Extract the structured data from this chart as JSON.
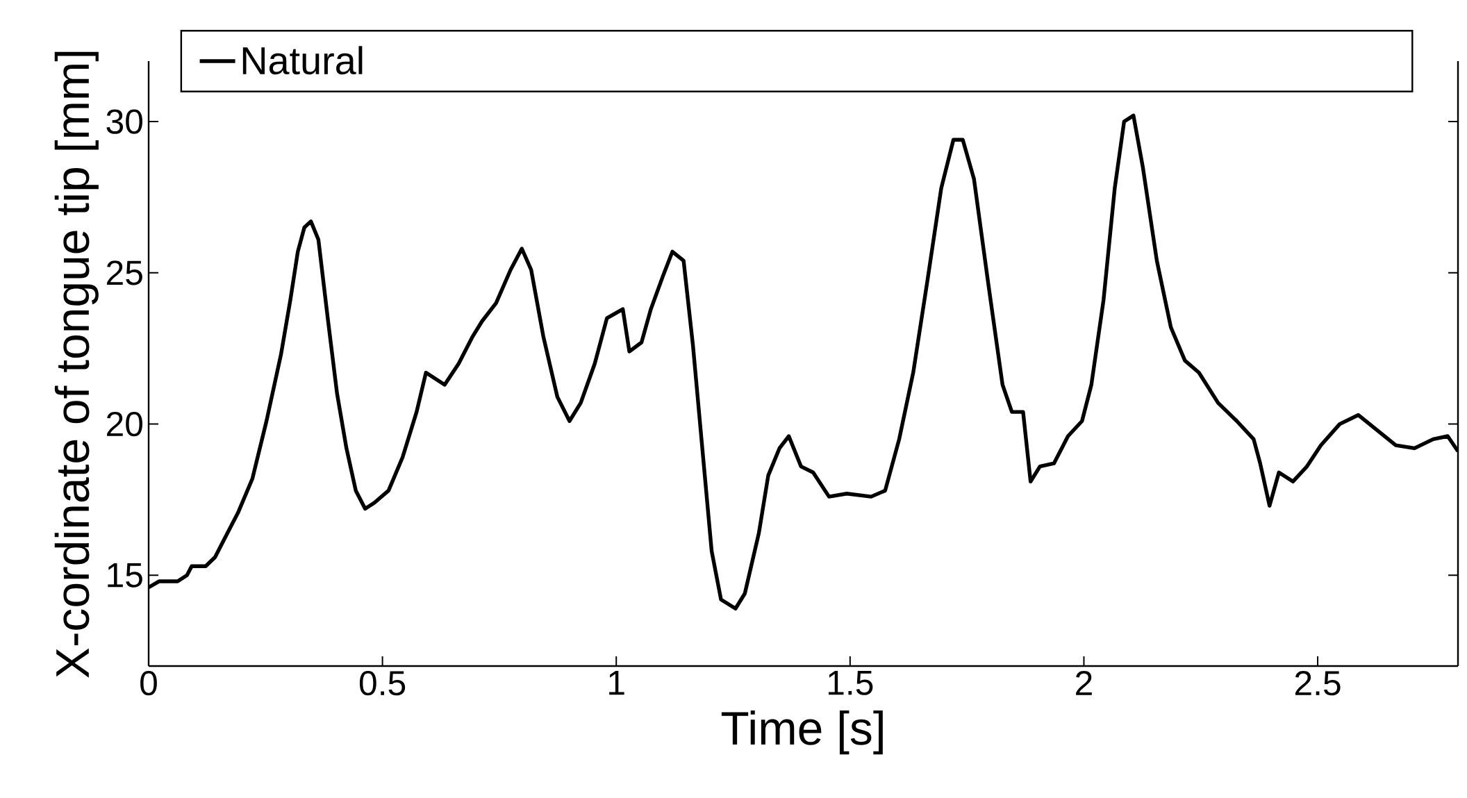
{
  "chart_data": {
    "type": "line",
    "xlabel": "Time [s]",
    "ylabel": "X-cordinate of tongue tip [mm]",
    "xlim": [
      0,
      2.8
    ],
    "ylim": [
      12,
      32
    ],
    "xticks": [
      0,
      0.5,
      1,
      1.5,
      2,
      2.5
    ],
    "yticks": [
      15,
      20,
      25,
      30
    ],
    "legend": "top",
    "grid": false,
    "marker": "none",
    "line_style": "solid",
    "series": [
      {
        "name": "Natural",
        "color": "#000000",
        "x": [
          0,
          0.022,
          0.062,
          0.082,
          0.092,
          0.122,
          0.142,
          0.162,
          0.192,
          0.222,
          0.252,
          0.283,
          0.303,
          0.319,
          0.333,
          0.347,
          0.363,
          0.383,
          0.403,
          0.423,
          0.443,
          0.463,
          0.483,
          0.513,
          0.543,
          0.573,
          0.593,
          0.613,
          0.633,
          0.663,
          0.693,
          0.713,
          0.743,
          0.774,
          0.798,
          0.818,
          0.844,
          0.874,
          0.9,
          0.924,
          0.954,
          0.98,
          1.014,
          1.028,
          1.054,
          1.074,
          1.1,
          1.12,
          1.144,
          1.164,
          1.184,
          1.204,
          1.224,
          1.255,
          1.275,
          1.305,
          1.325,
          1.349,
          1.369,
          1.395,
          1.421,
          1.455,
          1.493,
          1.545,
          1.575,
          1.605,
          1.635,
          1.665,
          1.695,
          1.721,
          1.741,
          1.765,
          1.795,
          1.826,
          1.846,
          1.87,
          1.886,
          1.906,
          1.936,
          1.966,
          1.996,
          2.016,
          2.042,
          2.066,
          2.086,
          2.106,
          2.126,
          2.156,
          2.186,
          2.216,
          2.246,
          2.287,
          2.327,
          2.363,
          2.377,
          2.397,
          2.417,
          2.447,
          2.477,
          2.507,
          2.547,
          2.587,
          2.627,
          2.667,
          2.707,
          2.747,
          2.778,
          2.8
        ],
        "values": [
          14.6,
          14.8,
          14.8,
          15.0,
          15.3,
          15.3,
          15.6,
          16.2,
          17.1,
          18.2,
          20.1,
          22.3,
          24.1,
          25.7,
          26.5,
          26.7,
          26.1,
          23.5,
          21.0,
          19.2,
          17.8,
          17.2,
          17.4,
          17.8,
          18.9,
          20.4,
          21.7,
          21.5,
          21.3,
          22.0,
          22.9,
          23.4,
          24.0,
          25.1,
          25.8,
          25.1,
          22.9,
          20.9,
          20.1,
          20.7,
          22.0,
          23.5,
          23.8,
          22.4,
          22.7,
          23.8,
          24.9,
          25.7,
          25.4,
          22.6,
          19.2,
          15.8,
          14.2,
          13.9,
          14.4,
          16.4,
          18.3,
          19.2,
          19.6,
          18.6,
          18.4,
          17.6,
          17.7,
          17.6,
          17.8,
          19.5,
          21.7,
          24.7,
          27.8,
          29.4,
          29.4,
          28.1,
          24.7,
          21.3,
          20.4,
          20.4,
          18.1,
          18.6,
          18.7,
          19.6,
          20.1,
          21.3,
          24.1,
          27.8,
          30.0,
          30.2,
          28.5,
          25.4,
          23.2,
          22.1,
          21.7,
          20.7,
          20.1,
          19.5,
          18.7,
          17.3,
          18.4,
          18.1,
          18.6,
          19.3,
          20.0,
          20.3,
          19.8,
          19.3,
          19.2,
          19.5,
          19.6,
          19.1
        ]
      }
    ]
  }
}
